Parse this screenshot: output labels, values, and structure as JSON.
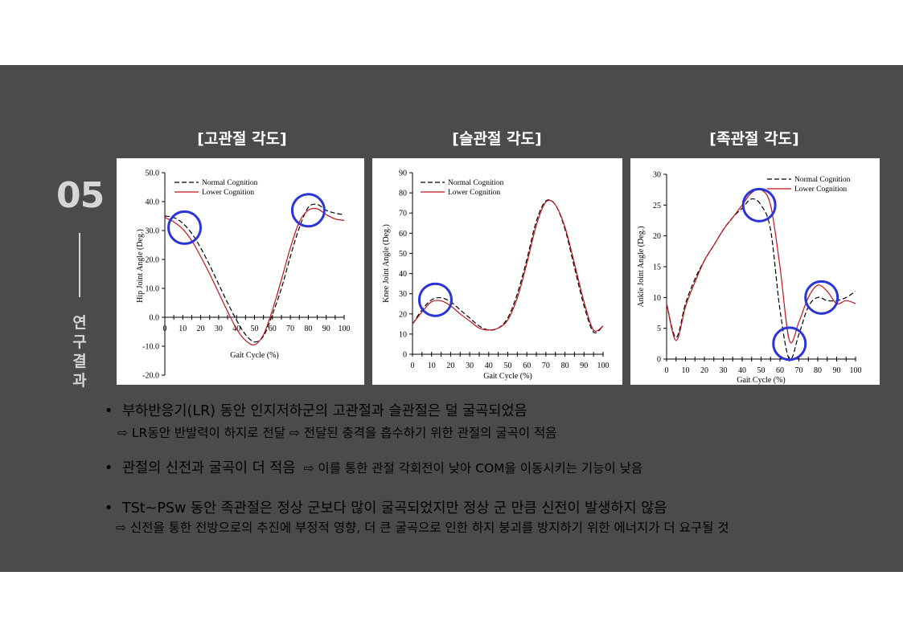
{
  "section": {
    "number": "05",
    "label_chars": [
      "연",
      "구",
      "결",
      "과"
    ]
  },
  "charts": {
    "hip_title": "[고관절 각도]",
    "knee_title": "[슬관절 각도]",
    "ankle_title": "[족관절 각도]"
  },
  "bullets": [
    {
      "marker": "•",
      "text": "부하반응기(LR) 동안 인지저하군의 고관절과 슬관절은 덜 굴곡되었음",
      "sub": "⇨ LR동안 반발력이 하지로 전달 ⇨ 전달된 충격을 흡수하기 위한 관절의 굴곡이 적음"
    },
    {
      "marker": "•",
      "text": "관절의 신전과 굴곡이 더 적음",
      "inline": "⇨ 이를 통한 관절 각회전이 낮아 COM을 이동시키는 기능이 낮음"
    },
    {
      "marker": "•",
      "text": "TSt~PSw 동안 족관절은 정상 군보다 많이 굴곡되었지만 정상 군 만큼 신전이 발생하지 않음",
      "sub": "⇨ 신전을 통한 전방으로의 추진에 부정적 영향, 더 큰 굴곡으로 인한 하지 붕괴를 방지하기 위한 에너지가 더 요구될 것"
    }
  ],
  "colors": {
    "normal": "#000000",
    "lower": "#c0141e",
    "highlight_circle": "#2b35d6",
    "background": "#4b4b4b"
  },
  "chart_data": [
    {
      "type": "line",
      "xlabel": "Gait Cycle (%)",
      "ylabel": "Hip Joint Angle (Deg.)",
      "xlim": [
        0,
        100
      ],
      "ylim": [
        -20,
        50
      ],
      "xticks": [
        0,
        10,
        20,
        30,
        40,
        50,
        60,
        70,
        80,
        90,
        100
      ],
      "yticks": [
        "50.0",
        "40.0",
        "30.0",
        "20.0",
        "10.0",
        "0.0",
        "-10.0",
        "-20.0"
      ],
      "legend_position": "top-left",
      "x": [
        0,
        5,
        10,
        15,
        20,
        25,
        30,
        35,
        40,
        45,
        50,
        55,
        60,
        65,
        70,
        75,
        80,
        85,
        90,
        95,
        100
      ],
      "series": [
        {
          "name": "Normal Cognition",
          "style": "dashed",
          "values": [
            35,
            34.5,
            32.5,
            29,
            24,
            18,
            11.5,
            5,
            -1,
            -6,
            -8.5,
            -6.5,
            1,
            10,
            21,
            31,
            38,
            39,
            37,
            36,
            35.5
          ]
        },
        {
          "name": "Lower Cognition",
          "style": "solid",
          "values": [
            34.5,
            33,
            30.5,
            26.5,
            21,
            15,
            8.5,
            2,
            -4,
            -8,
            -9.5,
            -6,
            2.5,
            13,
            24,
            33,
            37,
            37.5,
            35.5,
            34,
            33.5
          ]
        }
      ],
      "highlights": [
        {
          "x": 11,
          "y": 31
        },
        {
          "x": 80,
          "y": 37
        }
      ]
    },
    {
      "type": "line",
      "xlabel": "Gait Cycle (%)",
      "ylabel": "Knee Joint Angle (Deg.)",
      "xlim": [
        0,
        100
      ],
      "ylim": [
        0,
        90
      ],
      "xticks": [
        0,
        10,
        20,
        30,
        40,
        50,
        60,
        70,
        80,
        90,
        100
      ],
      "yticks": [
        0,
        10,
        20,
        30,
        40,
        50,
        60,
        70,
        80,
        90
      ],
      "legend_position": "top-left",
      "x": [
        0,
        5,
        10,
        15,
        20,
        25,
        30,
        35,
        40,
        45,
        50,
        55,
        60,
        65,
        70,
        75,
        80,
        85,
        90,
        95,
        100
      ],
      "series": [
        {
          "name": "Normal Cognition",
          "style": "dashed",
          "values": [
            15,
            22,
            27,
            28,
            26,
            22,
            18,
            14,
            12,
            13,
            18,
            30,
            47,
            66,
            76,
            74,
            62,
            43,
            24,
            11,
            14
          ]
        },
        {
          "name": "Lower Cognition",
          "style": "solid",
          "values": [
            15,
            21,
            26,
            26.5,
            24,
            20,
            16.5,
            13,
            12,
            13,
            17,
            28,
            45,
            64,
            75.5,
            74,
            63,
            45,
            26,
            12,
            14
          ]
        }
      ],
      "highlights": [
        {
          "x": 12,
          "y": 27
        }
      ]
    },
    {
      "type": "line",
      "xlabel": "Gait Cycle (%)",
      "ylabel": "Ankle Joint Angle (Deg.)",
      "xlim": [
        0,
        100
      ],
      "ylim": [
        0,
        30
      ],
      "xticks": [
        0,
        10,
        20,
        30,
        40,
        50,
        60,
        70,
        80,
        90,
        100
      ],
      "yticks": [
        0,
        5,
        10,
        15,
        20,
        25,
        30
      ],
      "legend_position": "top-right",
      "x": [
        0,
        5,
        10,
        15,
        20,
        25,
        30,
        35,
        40,
        45,
        50,
        55,
        60,
        65,
        70,
        75,
        80,
        85,
        90,
        95,
        100
      ],
      "series": [
        {
          "name": "Normal Cognition",
          "style": "dashed",
          "values": [
            9,
            3.5,
            9,
            13,
            16,
            18.5,
            21,
            23,
            24.5,
            26,
            25,
            21,
            8,
            0,
            4,
            8.5,
            10,
            9.5,
            9.5,
            10,
            11
          ]
        },
        {
          "name": "Lower Cognition",
          "style": "solid",
          "values": [
            9,
            3,
            8.5,
            12.5,
            16,
            18.5,
            21,
            23,
            25,
            27,
            27.5,
            25,
            15,
            3,
            6,
            10,
            12,
            11,
            9,
            9.5,
            9
          ]
        }
      ],
      "highlights": [
        {
          "x": 49,
          "y": 25
        },
        {
          "x": 65,
          "y": 2.5
        },
        {
          "x": 82,
          "y": 10
        }
      ]
    }
  ]
}
